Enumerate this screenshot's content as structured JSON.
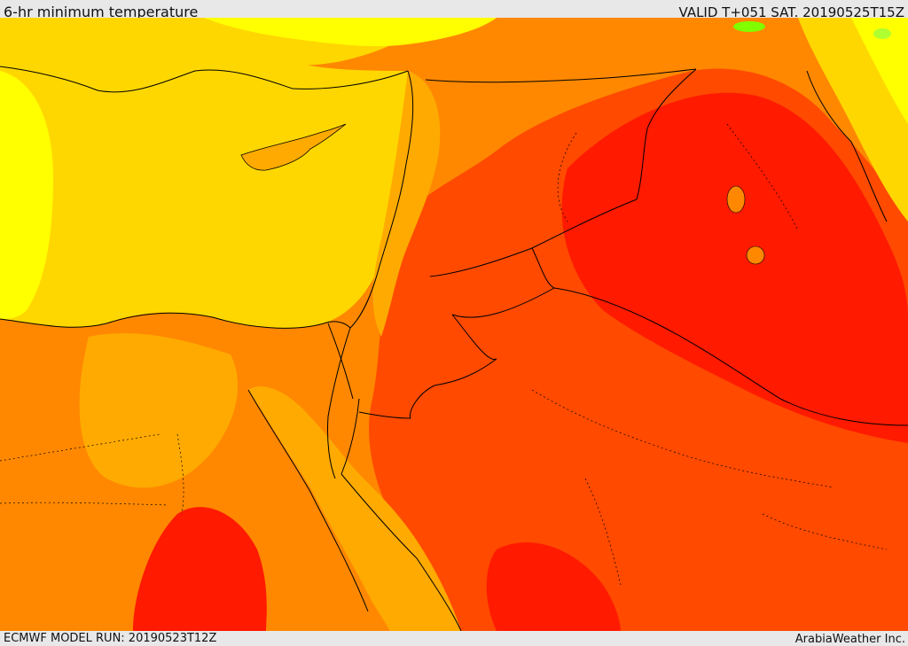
{
  "header": {
    "title": "6-hr minimum temperature",
    "valid": "VALID T+051 SAT. 20190525T15Z"
  },
  "footer": {
    "model_run": "ECMWF MODEL RUN: 20190523T12Z",
    "credit": "ArabiaWeather Inc."
  },
  "colors": {
    "cool_yellow": "#ffff00",
    "sea_yellow": "#ffd700",
    "warm_amber": "#ffaa00",
    "orange": "#ff8800",
    "red_orange": "#ff4a00",
    "red": "#ff1a00",
    "green": "#7fff00",
    "border": "#000000"
  }
}
